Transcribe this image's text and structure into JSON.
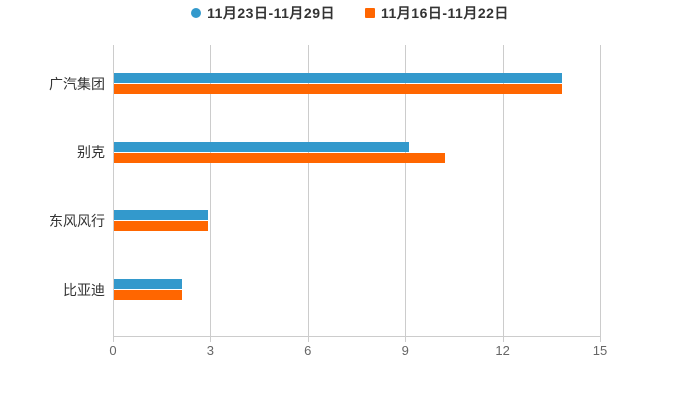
{
  "legend": {
    "items": [
      {
        "label": "11月23日-11月29日",
        "color": "#3399cc",
        "marker": "circle"
      },
      {
        "label": "11月16日-11月22日",
        "color": "#ff6600",
        "marker": "square"
      }
    ]
  },
  "chart_data": {
    "type": "bar",
    "orientation": "horizontal",
    "title": "",
    "xlabel": "",
    "ylabel": "",
    "categories": [
      "广汽集团",
      "别克",
      "东风风行",
      "比亚迪"
    ],
    "series": [
      {
        "name": "11月23日-11月29日",
        "color": "#3399cc",
        "values": [
          13.8,
          9.1,
          2.9,
          2.1
        ]
      },
      {
        "name": "11月16日-11月22日",
        "color": "#ff6600",
        "values": [
          13.8,
          10.2,
          2.9,
          2.1
        ]
      }
    ],
    "x_ticks": [
      "0",
      "3",
      "6",
      "9",
      "12",
      "15"
    ],
    "xlim": [
      0,
      15
    ],
    "grid": true,
    "legend_position": "top-center"
  },
  "colors": {
    "background": "#ffffff",
    "axis": "#cccccc",
    "grid": "#cccccc",
    "tick_label": "#666666",
    "category_label": "#333333",
    "legend_text": "#333333"
  }
}
